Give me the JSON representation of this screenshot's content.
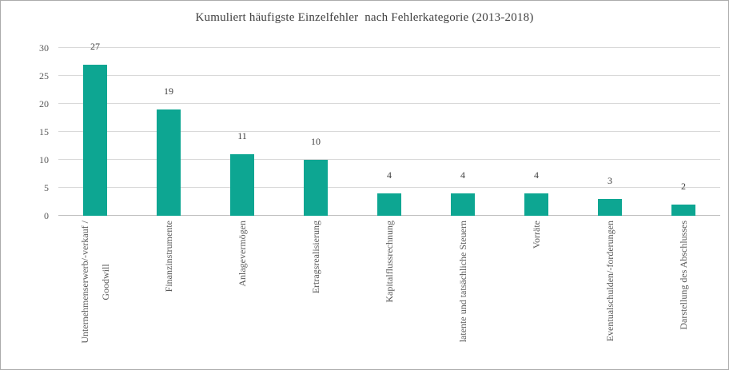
{
  "chart_data": {
    "type": "bar",
    "title": "Kumuliert häufigste Einzelfehler  nach Fehlerkategorie (2013-2018)",
    "categories": [
      "Unternehmenserwerb/-verkauf /\nGoodwill",
      "Finanzinstrumente",
      "Anlagevermögen",
      "Ertragsrealisierung",
      "Kapitalflussrechnung",
      "latente und tatsächliche Steuern",
      "Vorräte",
      "Eventualschulden/-forderungen",
      "Darstellung des Abschlusses"
    ],
    "values": [
      27,
      19,
      11,
      10,
      4,
      4,
      4,
      3,
      2
    ],
    "xlabel": "",
    "ylabel": "",
    "ylim": [
      0,
      30
    ],
    "yticks": [
      0,
      5,
      10,
      15,
      20,
      25,
      30
    ],
    "grid": true,
    "legend": "none",
    "data_labels": "outside-end",
    "bar_color": "#0DA692",
    "gridline_color": "#D9D9D9",
    "axis_line_color": "#BFBFBF",
    "title_color": "#3F3F3F",
    "tick_label_color": "#595959",
    "value_label_color": "#404040",
    "frame_border_color": "#ABABAB",
    "background_color": "#FFFFFF"
  }
}
